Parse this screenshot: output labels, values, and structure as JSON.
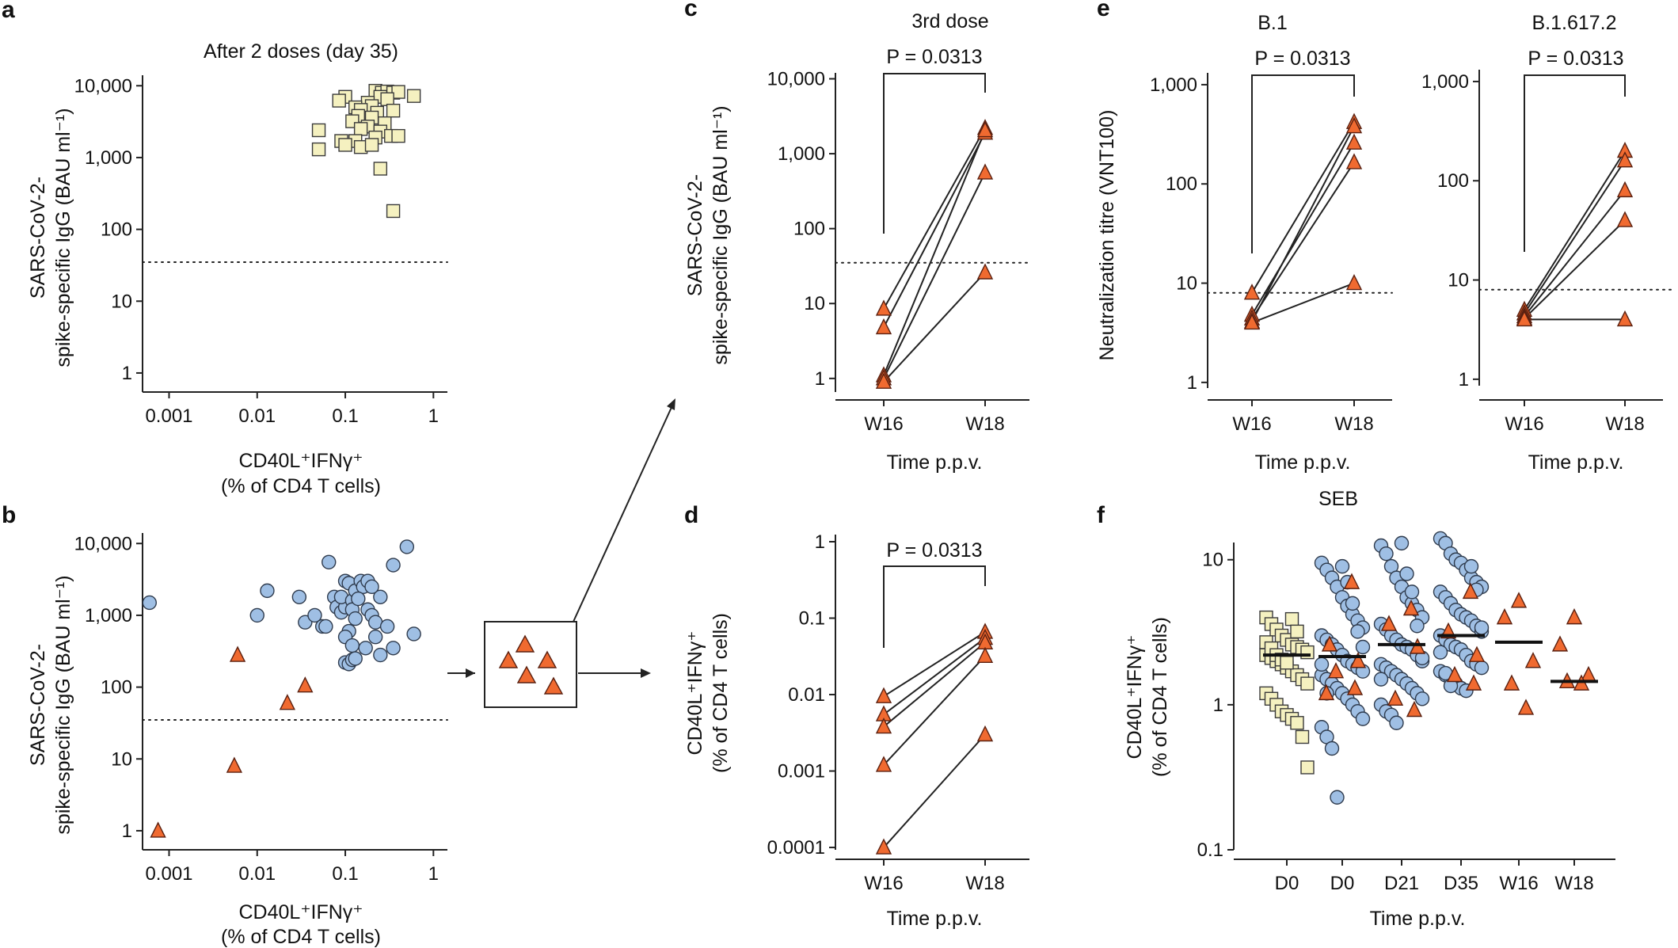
{
  "panel_labels": [
    "a",
    "b",
    "c",
    "d",
    "e",
    "f"
  ],
  "common": {
    "time_label": "Time p.p.v.",
    "x_cd40": "CD40L⁺IFNγ⁺",
    "x_cd40_sub": "(% of CD4 T cells)",
    "y_igg_1": "SARS-CoV-2-",
    "y_igg_2": "spike-specific IgG (BAU ml⁻¹)",
    "y_cd40_1": "CD40L⁺IFNγ⁺",
    "y_cd40_2": "(% of CD4 T cells)",
    "y_vnt": "Neutralization titre (VNT100)",
    "pvalue": "P = 0.0313"
  },
  "colors": {
    "square_fill": "#f5f1c0",
    "circle_fill": "#9fbfe4",
    "triangle_fill": "#f06a30"
  },
  "chart_data": [
    {
      "panel": "a",
      "type": "scatter",
      "title": "After 2 doses (day 35)",
      "xscale": "log",
      "yscale": "log",
      "xlim": [
        0.0005,
        1.3
      ],
      "ylim": [
        0.7,
        14000
      ],
      "xticks": [
        0.001,
        0.01,
        0.1,
        1
      ],
      "xticklabels": [
        "0.001",
        "0.01",
        "0.1",
        "1"
      ],
      "yticks": [
        1,
        10,
        100,
        1000,
        10000
      ],
      "yticklabels": [
        "1",
        "10",
        "100",
        "1,000",
        "10,000"
      ],
      "threshold": 35,
      "series": [
        {
          "name": "day 35",
          "marker": "square",
          "points": [
            [
              0.22,
              8500
            ],
            [
              0.26,
              8000
            ],
            [
              0.3,
              8300
            ],
            [
              0.35,
              8000
            ],
            [
              0.4,
              8200
            ],
            [
              0.6,
              7200
            ],
            [
              0.1,
              7000
            ],
            [
              0.085,
              6200
            ],
            [
              0.25,
              7000
            ],
            [
              0.18,
              5800
            ],
            [
              0.3,
              6500
            ],
            [
              0.13,
              5000
            ],
            [
              0.2,
              5200
            ],
            [
              0.15,
              4600
            ],
            [
              0.23,
              4200
            ],
            [
              0.35,
              4500
            ],
            [
              0.14,
              3800
            ],
            [
              0.2,
              3600
            ],
            [
              0.12,
              3200
            ],
            [
              0.28,
              3000
            ],
            [
              0.18,
              2700
            ],
            [
              0.15,
              2500
            ],
            [
              0.05,
              2400
            ],
            [
              0.25,
              2300
            ],
            [
              0.33,
              2000
            ],
            [
              0.4,
              2000
            ],
            [
              0.22,
              1900
            ],
            [
              0.09,
              1700
            ],
            [
              0.13,
              1700
            ],
            [
              0.1,
              1500
            ],
            [
              0.15,
              1400
            ],
            [
              0.05,
              1300
            ],
            [
              0.2,
              1500
            ],
            [
              0.25,
              700
            ],
            [
              0.35,
              180
            ]
          ]
        }
      ]
    },
    {
      "panel": "b",
      "type": "scatter",
      "title": "",
      "xscale": "log",
      "yscale": "log",
      "xlim": [
        0.0005,
        1.3
      ],
      "ylim": [
        0.7,
        14000
      ],
      "xticks": [
        0.001,
        0.01,
        0.1,
        1
      ],
      "xticklabels": [
        "0.001",
        "0.01",
        "0.1",
        "1"
      ],
      "yticks": [
        1,
        10,
        100,
        1000,
        10000
      ],
      "yticklabels": [
        "1",
        "10",
        "100",
        "1,000",
        "10,000"
      ],
      "threshold": 35,
      "series": [
        {
          "name": "blue",
          "marker": "circle",
          "points": [
            [
              0.0006,
              1500
            ],
            [
              0.01,
              1000
            ],
            [
              0.013,
              2200
            ],
            [
              0.03,
              1800
            ],
            [
              0.035,
              800
            ],
            [
              0.045,
              1000
            ],
            [
              0.055,
              700
            ],
            [
              0.06,
              700
            ],
            [
              0.065,
              5500
            ],
            [
              0.075,
              1800
            ],
            [
              0.08,
              1300
            ],
            [
              0.09,
              1100
            ],
            [
              0.1,
              1300
            ],
            [
              0.09,
              1800
            ],
            [
              0.1,
              3000
            ],
            [
              0.11,
              2800
            ],
            [
              0.12,
              1600
            ],
            [
              0.12,
              1200
            ],
            [
              0.13,
              2200
            ],
            [
              0.15,
              3000
            ],
            [
              0.16,
              2500
            ],
            [
              0.14,
              1700
            ],
            [
              0.13,
              900
            ],
            [
              0.11,
              600
            ],
            [
              0.1,
              500
            ],
            [
              0.12,
              380
            ],
            [
              0.1,
              220
            ],
            [
              0.11,
              210
            ],
            [
              0.12,
              240
            ],
            [
              0.13,
              250
            ],
            [
              0.18,
              1200
            ],
            [
              0.2,
              1000
            ],
            [
              0.22,
              800
            ],
            [
              0.25,
              1800
            ],
            [
              0.18,
              3000
            ],
            [
              0.2,
              2500
            ],
            [
              0.17,
              350
            ],
            [
              0.22,
              500
            ],
            [
              0.3,
              700
            ],
            [
              0.35,
              350
            ],
            [
              0.35,
              5000
            ],
            [
              0.5,
              9000
            ],
            [
              0.6,
              550
            ],
            [
              0.25,
              280
            ]
          ]
        },
        {
          "name": "orange",
          "marker": "triangle",
          "points": [
            [
              0.00075,
              1
            ],
            [
              0.0055,
              8
            ],
            [
              0.006,
              280
            ],
            [
              0.022,
              60
            ],
            [
              0.035,
              105
            ]
          ]
        }
      ]
    },
    {
      "panel": "c",
      "type": "line",
      "title": "3rd dose",
      "yscale": "log",
      "ylim": [
        0.8,
        12000
      ],
      "categories": [
        "W16",
        "W18"
      ],
      "threshold": 35,
      "pvalue": "P = 0.0313",
      "yticks": [
        1,
        10,
        100,
        1000,
        10000
      ],
      "yticklabels": [
        "1",
        "10",
        "100",
        "1,000",
        "10,000"
      ],
      "pairs": [
        [
          8.5,
          2200
        ],
        [
          4.8,
          1900
        ],
        [
          1.1,
          2050
        ],
        [
          1.0,
          560
        ],
        [
          0.9,
          26
        ]
      ]
    },
    {
      "panel": "d",
      "type": "line",
      "title": "",
      "yscale": "log",
      "ylim": [
        7e-05,
        1.3
      ],
      "categories": [
        "W16",
        "W18"
      ],
      "pvalue": "P = 0.0313",
      "yticks": [
        0.0001,
        0.001,
        0.01,
        0.1,
        1
      ],
      "yticklabels": [
        "0.0001",
        "0.001",
        "0.01",
        "0.1",
        "1"
      ],
      "pairs": [
        [
          0.0095,
          0.066
        ],
        [
          0.0055,
          0.055
        ],
        [
          0.0038,
          0.048
        ],
        [
          0.0012,
          0.032
        ],
        [
          0.0001,
          0.003
        ]
      ]
    },
    {
      "panel": "e1",
      "type": "line",
      "title": "B.1",
      "yscale": "log",
      "ylim": [
        0.8,
        1200
      ],
      "categories": [
        "W16",
        "W18"
      ],
      "threshold": 8,
      "pvalue": "P = 0.0313",
      "yticks": [
        1,
        10,
        100,
        1000
      ],
      "yticklabels": [
        "1",
        "10",
        "100",
        "1,000"
      ],
      "pairs": [
        [
          8,
          420
        ],
        [
          4.8,
          260
        ],
        [
          4.4,
          165
        ],
        [
          4.1,
          380
        ],
        [
          4.0,
          10
        ]
      ]
    },
    {
      "panel": "e2",
      "type": "line",
      "title": "B.1.617.2",
      "yscale": "log",
      "ylim": [
        0.8,
        1200
      ],
      "categories": [
        "W16",
        "W18"
      ],
      "threshold": 8,
      "pvalue": "P = 0.0313",
      "yticks": [
        1,
        10,
        100,
        1000
      ],
      "yticklabels": [
        "1",
        "10",
        "100",
        "1,000"
      ],
      "pairs": [
        [
          5,
          200
        ],
        [
          4.6,
          160
        ],
        [
          4.3,
          80
        ],
        [
          4.1,
          40
        ],
        [
          4.0,
          4.0
        ]
      ]
    },
    {
      "panel": "f",
      "type": "scatter",
      "title": "SEB",
      "yscale": "log",
      "ylim": [
        0.1,
        18
      ],
      "categories": [
        "D0",
        "D0",
        "D21",
        "D35",
        "W16",
        "W18"
      ],
      "yticks": [
        0.1,
        1,
        10
      ],
      "yticklabels": [
        "0.1",
        "1",
        "10"
      ],
      "medians": [
        2.2,
        2.15,
        2.6,
        3.0,
        2.7,
        1.45
      ],
      "groups": [
        {
          "marker": "square",
          "values": [
            4.0,
            3.6,
            3.3,
            3.0,
            2.8,
            2.6,
            2.5,
            2.4,
            2.3,
            2.2,
            2.1,
            2.0,
            1.9,
            1.8,
            1.7,
            1.6,
            1.5,
            1.4,
            1.2,
            1.1,
            1.0,
            0.9,
            0.85,
            0.8,
            0.75,
            0.6,
            0.37,
            2.7,
            2.45,
            2.2,
            2.05,
            1.95,
            3.9,
            3.2
          ]
        },
        {
          "marker": "circle",
          "values": [
            9.5,
            8.5,
            7.5,
            6.5,
            5.5,
            4.8,
            4.2,
            3.8,
            3.4,
            3.0,
            2.8,
            2.6,
            2.4,
            2.2,
            2.0,
            1.9,
            1.8,
            1.7,
            1.6,
            1.5,
            1.4,
            1.3,
            1.2,
            1.1,
            1.0,
            0.9,
            0.8,
            0.7,
            0.6,
            0.5,
            0.23,
            9.0,
            7.0,
            5.0,
            3.2,
            2.5,
            1.9,
            1.2
          ],
          "overlay": [
            7.0,
            2.6,
            2.0,
            1.7,
            1.3,
            1.2
          ]
        },
        {
          "marker": "circle",
          "values": [
            12.5,
            11,
            9.0,
            7.5,
            6.5,
            5.5,
            5.0,
            4.5,
            4.0,
            3.6,
            3.3,
            3.0,
            2.8,
            2.6,
            2.5,
            2.4,
            2.2,
            2.0,
            1.9,
            1.8,
            1.7,
            1.6,
            1.5,
            1.4,
            1.3,
            1.2,
            1.1,
            1.0,
            0.9,
            0.85,
            0.75,
            13,
            8.0,
            6.0,
            3.5,
            2.1,
            1.5
          ],
          "overlay": [
            4.6,
            3.6,
            2.5,
            1.1,
            0.92
          ]
        },
        {
          "marker": "circle",
          "values": [
            14,
            13,
            11,
            10,
            9.5,
            8.5,
            7.5,
            7.0,
            6.5,
            6.0,
            5.5,
            5.0,
            4.5,
            4.2,
            4.0,
            3.8,
            3.5,
            3.2,
            3.0,
            2.8,
            2.6,
            2.5,
            2.4,
            2.2,
            2.0,
            1.9,
            1.8,
            1.7,
            1.6,
            1.5,
            1.4,
            1.3,
            1.25,
            9.0,
            6.2,
            3.4,
            2.3,
            1.65,
            1.35
          ],
          "overlay": [
            6.0,
            3.2,
            2.2,
            1.6,
            1.4
          ]
        },
        {
          "marker": "triangle",
          "values": [
            5.2,
            4.0,
            2.0,
            1.4,
            0.95
          ]
        },
        {
          "marker": "triangle",
          "values": [
            4.0,
            2.6,
            1.6,
            1.45,
            1.4
          ]
        }
      ]
    }
  ]
}
